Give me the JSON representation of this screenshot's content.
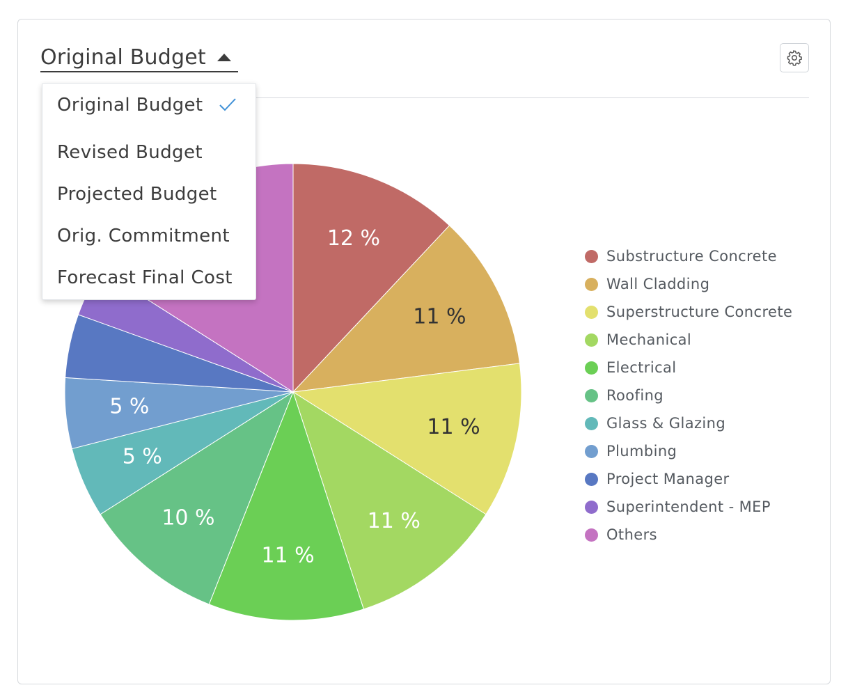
{
  "selector": {
    "selected": "Original Budget",
    "options": [
      "Original Budget",
      "Revised Budget",
      "Projected Budget",
      "Orig. Commitment",
      "Forecast Final Cost"
    ]
  },
  "settings": {
    "icon": "gear-icon"
  },
  "chart_data": {
    "type": "pie",
    "title": "",
    "categories": [
      "Substructure Concrete",
      "Wall Cladding",
      "Superstructure Concrete",
      "Mechanical",
      "Electrical",
      "Roofing",
      "Glass & Glazing",
      "Plumbing",
      "Project Manager",
      "Superintendent - MEP",
      "Others"
    ],
    "values": [
      12,
      11,
      11,
      11,
      11,
      10,
      5,
      5,
      4.5,
      3.5,
      16
    ],
    "labels": [
      "12 %",
      "11 %",
      "11 %",
      "11 %",
      "11 %",
      "10 %",
      "5 %",
      "5 %",
      "",
      "",
      ""
    ],
    "colors": [
      "#c06a66",
      "#d8b05e",
      "#e3e06e",
      "#a3d862",
      "#6bcf55",
      "#66c286",
      "#62b9b9",
      "#729ecf",
      "#5878c2",
      "#8f6ccc",
      "#c473c1"
    ],
    "label_colors": [
      "#ffffff",
      "#333333",
      "#333333",
      "#ffffff",
      "#ffffff",
      "#ffffff",
      "#ffffff",
      "#ffffff",
      "#ffffff",
      "#ffffff",
      "#ffffff"
    ],
    "legend_position": "right"
  }
}
